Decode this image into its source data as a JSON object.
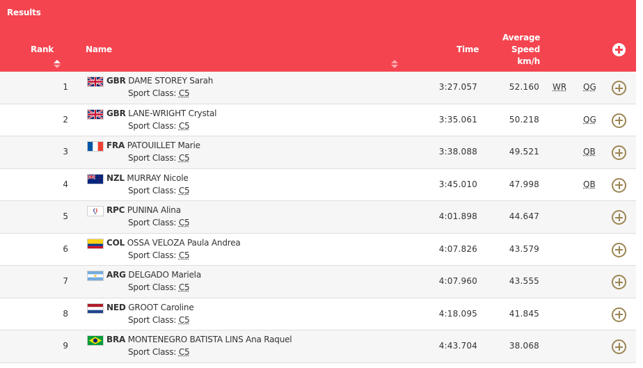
{
  "header": {
    "title": "Results",
    "columns": {
      "rank": "Rank",
      "name": "Name",
      "time": "Time",
      "speed": "Average Speed km/h"
    }
  },
  "sport_class_label": "Sport Class:",
  "rows": [
    {
      "rank": "1",
      "flag": "gbr-flag-icon",
      "noc": "GBR",
      "name": "DAME STOREY Sarah",
      "class": "C5",
      "time": "3:27.057",
      "speed": "52.160",
      "record": "WR",
      "qual": "QG"
    },
    {
      "rank": "2",
      "flag": "gbr-flag-icon",
      "noc": "GBR",
      "name": "LANE-WRIGHT Crystal",
      "class": "C5",
      "time": "3:35.061",
      "speed": "50.218",
      "record": "",
      "qual": "QG"
    },
    {
      "rank": "3",
      "flag": "fra-flag-icon",
      "noc": "FRA",
      "name": "PATOUILLET Marie",
      "class": "C5",
      "time": "3:38.088",
      "speed": "49.521",
      "record": "",
      "qual": "QB"
    },
    {
      "rank": "4",
      "flag": "nzl-flag-icon",
      "noc": "NZL",
      "name": "MURRAY Nicole",
      "class": "C5",
      "time": "3:45.010",
      "speed": "47.998",
      "record": "",
      "qual": "QB"
    },
    {
      "rank": "5",
      "flag": "rpc-flag-icon",
      "noc": "RPC",
      "name": "PUNINA Alina",
      "class": "C5",
      "time": "4:01.898",
      "speed": "44.647",
      "record": "",
      "qual": ""
    },
    {
      "rank": "6",
      "flag": "col-flag-icon",
      "noc": "COL",
      "name": "OSSA VELOZA Paula Andrea",
      "class": "C5",
      "time": "4:07.826",
      "speed": "43.579",
      "record": "",
      "qual": ""
    },
    {
      "rank": "7",
      "flag": "arg-flag-icon",
      "noc": "ARG",
      "name": "DELGADO Mariela",
      "class": "C5",
      "time": "4:07.960",
      "speed": "43.555",
      "record": "",
      "qual": ""
    },
    {
      "rank": "8",
      "flag": "ned-flag-icon",
      "noc": "NED",
      "name": "GROOT Caroline",
      "class": "C5",
      "time": "4:18.095",
      "speed": "41.845",
      "record": "",
      "qual": ""
    },
    {
      "rank": "9",
      "flag": "bra-flag-icon",
      "noc": "BRA",
      "name": "MONTENEGRO BATISTA LINS Ana Raquel",
      "class": "C5",
      "time": "4:43.704",
      "speed": "38.068",
      "record": "",
      "qual": ""
    }
  ],
  "colors": {
    "header_bg": "#f4444f",
    "expand_icon": "#9b8452"
  }
}
